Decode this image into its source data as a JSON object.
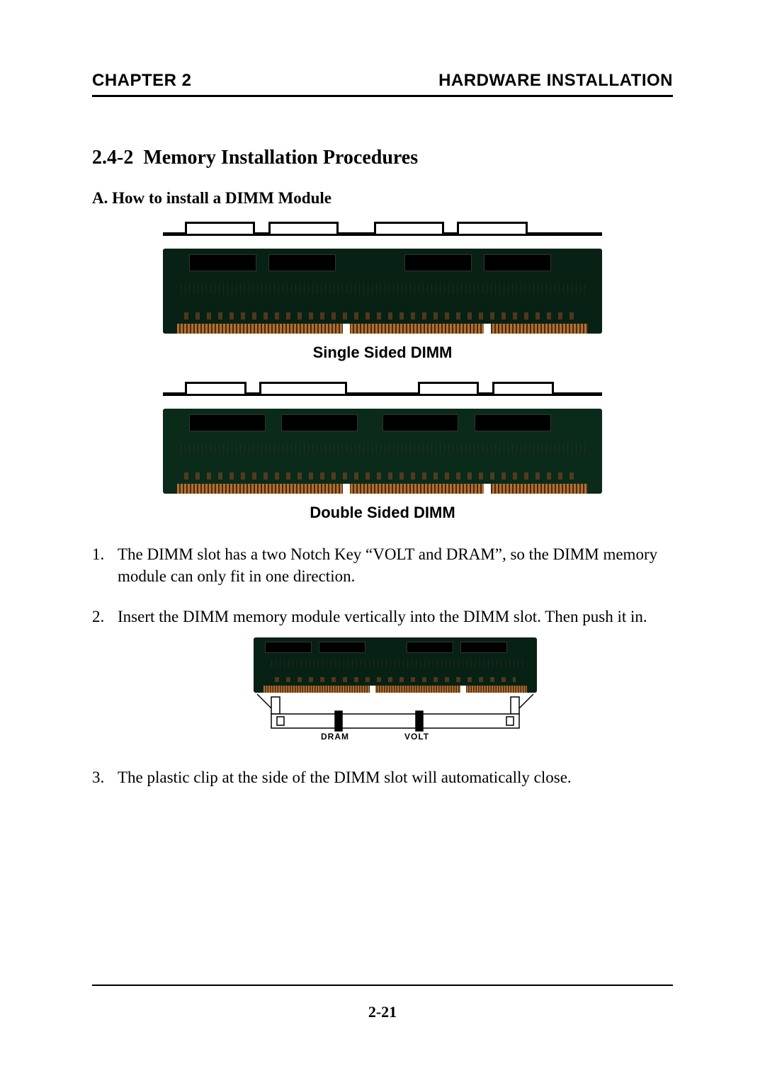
{
  "header": {
    "left": "CHAPTER 2",
    "right": "HARDWARE INSTALLATION"
  },
  "section": {
    "number": "2.4-2",
    "title": "Memory Installation Procedures"
  },
  "subsection": {
    "label": "A.",
    "title": "How to install a DIMM Module"
  },
  "figures": {
    "single": {
      "caption": "Single Sided DIMM",
      "notch_segments": [
        {
          "left_pct": 5,
          "width_pct": 16
        },
        {
          "left_pct": 24,
          "width_pct": 16
        },
        {
          "left_pct": 48,
          "width_pct": 16
        },
        {
          "left_pct": 67,
          "width_pct": 16
        }
      ],
      "pcb_color": "#072115",
      "pin_color_a": "#b07030",
      "pin_color_b": "#4a2a10",
      "notch_cuts_pct": [
        41,
        73
      ],
      "chips": [
        {
          "left_pct": 6,
          "width_pct": 15
        },
        {
          "left_pct": 24,
          "width_pct": 15
        },
        {
          "left_pct": 55,
          "width_pct": 15
        },
        {
          "left_pct": 73,
          "width_pct": 15
        }
      ]
    },
    "double": {
      "caption": "Double Sided DIMM",
      "notch_segments": [
        {
          "left_pct": 5,
          "width_pct": 14
        },
        {
          "left_pct": 22,
          "width_pct": 20
        },
        {
          "left_pct": 58,
          "width_pct": 14
        },
        {
          "left_pct": 75,
          "width_pct": 14
        }
      ],
      "pcb_color": "#0a2a1a",
      "notch_cuts_pct": [
        41,
        73
      ],
      "chips": [
        {
          "left_pct": 6,
          "width_pct": 17
        },
        {
          "left_pct": 27,
          "width_pct": 17
        },
        {
          "left_pct": 50,
          "width_pct": 17
        },
        {
          "left_pct": 71,
          "width_pct": 17
        }
      ]
    },
    "slot": {
      "labels": {
        "dram": "DRAM",
        "volt": "VOLT"
      },
      "notch_cuts_pct": [
        41,
        73
      ],
      "chips": [
        {
          "left_pct": 4,
          "width_pct": 16
        },
        {
          "left_pct": 23,
          "width_pct": 16
        },
        {
          "left_pct": 54,
          "width_pct": 16
        },
        {
          "left_pct": 73,
          "width_pct": 16
        }
      ]
    }
  },
  "steps": [
    "The DIMM slot has a two Notch Key “VOLT and DRAM”, so the DIMM memory module can only fit in one direction.",
    "Insert the DIMM memory module vertically into the DIMM slot. Then push  it in.",
    "The plastic clip at the side of the DIMM slot will automatically close."
  ],
  "page_number": "2-21"
}
